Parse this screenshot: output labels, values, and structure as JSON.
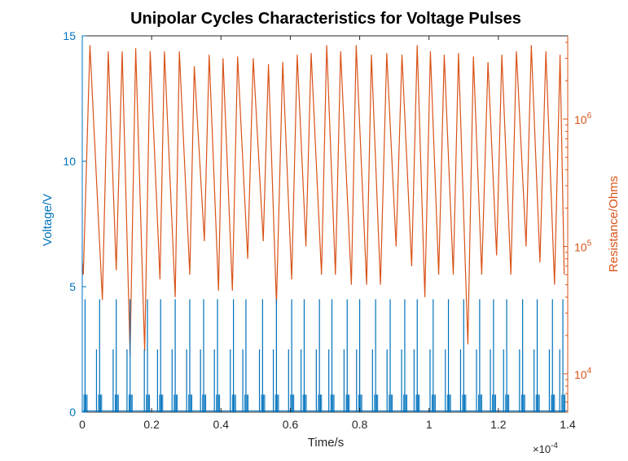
{
  "chart_data": {
    "type": "line",
    "title": "Unipolar Cycles Characteristics for Voltage Pulses",
    "xlabel": "Time/s",
    "x_exponent_label": "×10",
    "x_exponent_power": "-4",
    "xlim": [
      0,
      1.4
    ],
    "x_scale_factor": 0.0001,
    "x_ticks": [
      0,
      0.2,
      0.4,
      0.6,
      0.8,
      1,
      1.2,
      1.4
    ],
    "x_tick_labels": [
      "0",
      "0.2",
      "0.4",
      "0.6",
      "0.8",
      "1",
      "1.2",
      "1.4"
    ],
    "left_axis": {
      "label": "Voltage/V",
      "lim": [
        0,
        15
      ],
      "ticks": [
        0,
        5,
        10,
        15
      ],
      "tick_labels": [
        "0",
        "5",
        "10",
        "15"
      ],
      "color": "#0072BD"
    },
    "right_axis": {
      "label": "Resistance/Ohms",
      "scale": "log",
      "lim": [
        5000,
        4500000
      ],
      "ticks": [
        10000,
        100000,
        1000000
      ],
      "tick_base": "10",
      "tick_powers": [
        "4",
        "5",
        "6"
      ],
      "color": "#D95319"
    },
    "grid": false,
    "series": [
      {
        "axis": "left",
        "color": "#0072BD",
        "pulse_times": [
          0.008,
          0.05,
          0.098,
          0.138,
          0.188,
          0.226,
          0.268,
          0.31,
          0.35,
          0.39,
          0.436,
          0.472,
          0.52,
          0.56,
          0.604,
          0.64,
          0.684,
          0.72,
          0.764,
          0.8,
          0.846,
          0.888,
          0.93,
          0.966,
          1.012,
          1.056,
          1.1,
          1.146,
          1.186,
          1.224,
          1.27,
          1.312,
          1.356,
          1.386
        ],
        "pulse_high": 4.5,
        "pulse_mid": 2.5,
        "pulse_low": 0.7
      },
      {
        "axis": "right",
        "color": "#D95319",
        "x": [
          0,
          0.003,
          0.022,
          0.058,
          0.075,
          0.098,
          0.115,
          0.138,
          0.154,
          0.18,
          0.196,
          0.224,
          0.237,
          0.268,
          0.28,
          0.31,
          0.323,
          0.352,
          0.366,
          0.393,
          0.406,
          0.433,
          0.448,
          0.477,
          0.493,
          0.522,
          0.537,
          0.56,
          0.578,
          0.604,
          0.62,
          0.645,
          0.66,
          0.69,
          0.705,
          0.73,
          0.745,
          0.776,
          0.79,
          0.82,
          0.834,
          0.86,
          0.878,
          0.905,
          0.922,
          0.95,
          0.966,
          0.988,
          1.004,
          1.028,
          1.044,
          1.07,
          1.085,
          1.112,
          1.128,
          1.152,
          1.17,
          1.195,
          1.21,
          1.236,
          1.252,
          1.28,
          1.295,
          1.32,
          1.337,
          1.362,
          1.378,
          1.39
        ],
        "y": [
          75000,
          60000,
          3800000,
          38000,
          3400000,
          65000,
          3400000,
          14000,
          3600000,
          15000,
          3400000,
          55000,
          3400000,
          40000,
          3400000,
          60000,
          2600000,
          110000,
          3200000,
          45000,
          3000000,
          45000,
          3100000,
          80000,
          3000000,
          110000,
          2700000,
          35000,
          2800000,
          55000,
          3200000,
          100000,
          3300000,
          60000,
          3800000,
          60000,
          3400000,
          50000,
          3800000,
          50000,
          3200000,
          50000,
          3300000,
          100000,
          3200000,
          70000,
          3800000,
          40000,
          3400000,
          60000,
          3200000,
          60000,
          3300000,
          17000,
          3100000,
          60000,
          2800000,
          85000,
          3200000,
          60000,
          3400000,
          100000,
          3800000,
          75000,
          3400000,
          50000,
          3200000,
          60000
        ]
      }
    ]
  }
}
